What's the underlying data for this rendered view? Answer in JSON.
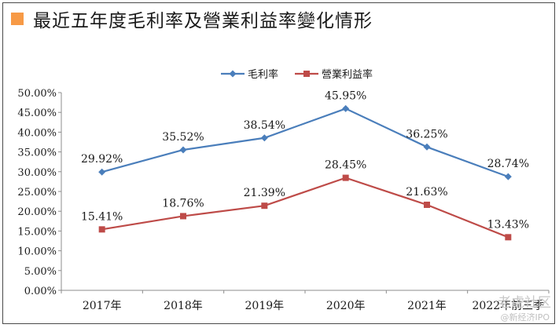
{
  "chart_data": {
    "type": "line",
    "title": "最近五年度毛利率及營業利益率變化情形",
    "categories": [
      "2017年",
      "2018年",
      "2019年",
      "2020年",
      "2021年",
      "2022年前三季"
    ],
    "series": [
      {
        "name": "毛利率",
        "values": [
          29.92,
          35.52,
          38.54,
          45.95,
          36.25,
          28.74
        ],
        "labels": [
          "29.92%",
          "35.52%",
          "38.54%",
          "45.95%",
          "36.25%",
          "28.74%"
        ],
        "color": "#4a7ebb",
        "marker": "diamond"
      },
      {
        "name": "營業利益率",
        "values": [
          15.41,
          18.76,
          21.39,
          28.45,
          21.63,
          13.43
        ],
        "labels": [
          "15.41%",
          "18.76%",
          "21.39%",
          "28.45%",
          "21.63%",
          "13.43%"
        ],
        "color": "#be4b48",
        "marker": "square"
      }
    ],
    "ylim": [
      0,
      50
    ],
    "yticks": [
      0,
      5,
      10,
      15,
      20,
      25,
      30,
      35,
      40,
      45,
      50
    ],
    "ytick_labels": [
      "0.00%",
      "5.00%",
      "10.00%",
      "15.00%",
      "20.00%",
      "25.00%",
      "30.00%",
      "35.00%",
      "40.00%",
      "45.00%",
      "50.00%"
    ],
    "grid": false,
    "legend": "top-center"
  },
  "watermark": {
    "main": "老虎社区",
    "sub": "@新经济IPO"
  }
}
